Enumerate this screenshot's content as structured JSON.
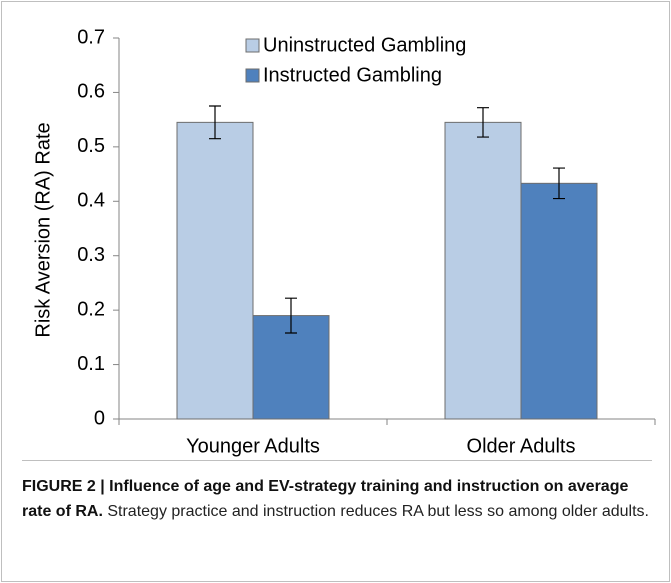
{
  "chart_data": {
    "type": "bar",
    "y_label": "Risk Aversion (RA) Rate",
    "categories": [
      "Younger Adults",
      "Older Adults"
    ],
    "series": [
      {
        "name": "Uninstructed Gambling",
        "color": "#b9cde5",
        "values": [
          0.545,
          0.545
        ],
        "errors": [
          0.03,
          0.027
        ]
      },
      {
        "name": "Instructed Gambling",
        "color": "#4f81bd",
        "values": [
          0.19,
          0.433
        ],
        "errors": [
          0.032,
          0.028
        ]
      }
    ],
    "ylim": [
      0,
      0.7
    ],
    "yticks": [
      0,
      0.1,
      0.2,
      0.3,
      0.4,
      0.5,
      0.6,
      0.7
    ],
    "grid": false,
    "legend": "top"
  },
  "caption": {
    "label": "FIGURE 2 | Influence of age and EV-strategy training and instruction on average rate of RA.",
    "text": "Strategy practice and instruction reduces RA but less so among older adults."
  }
}
